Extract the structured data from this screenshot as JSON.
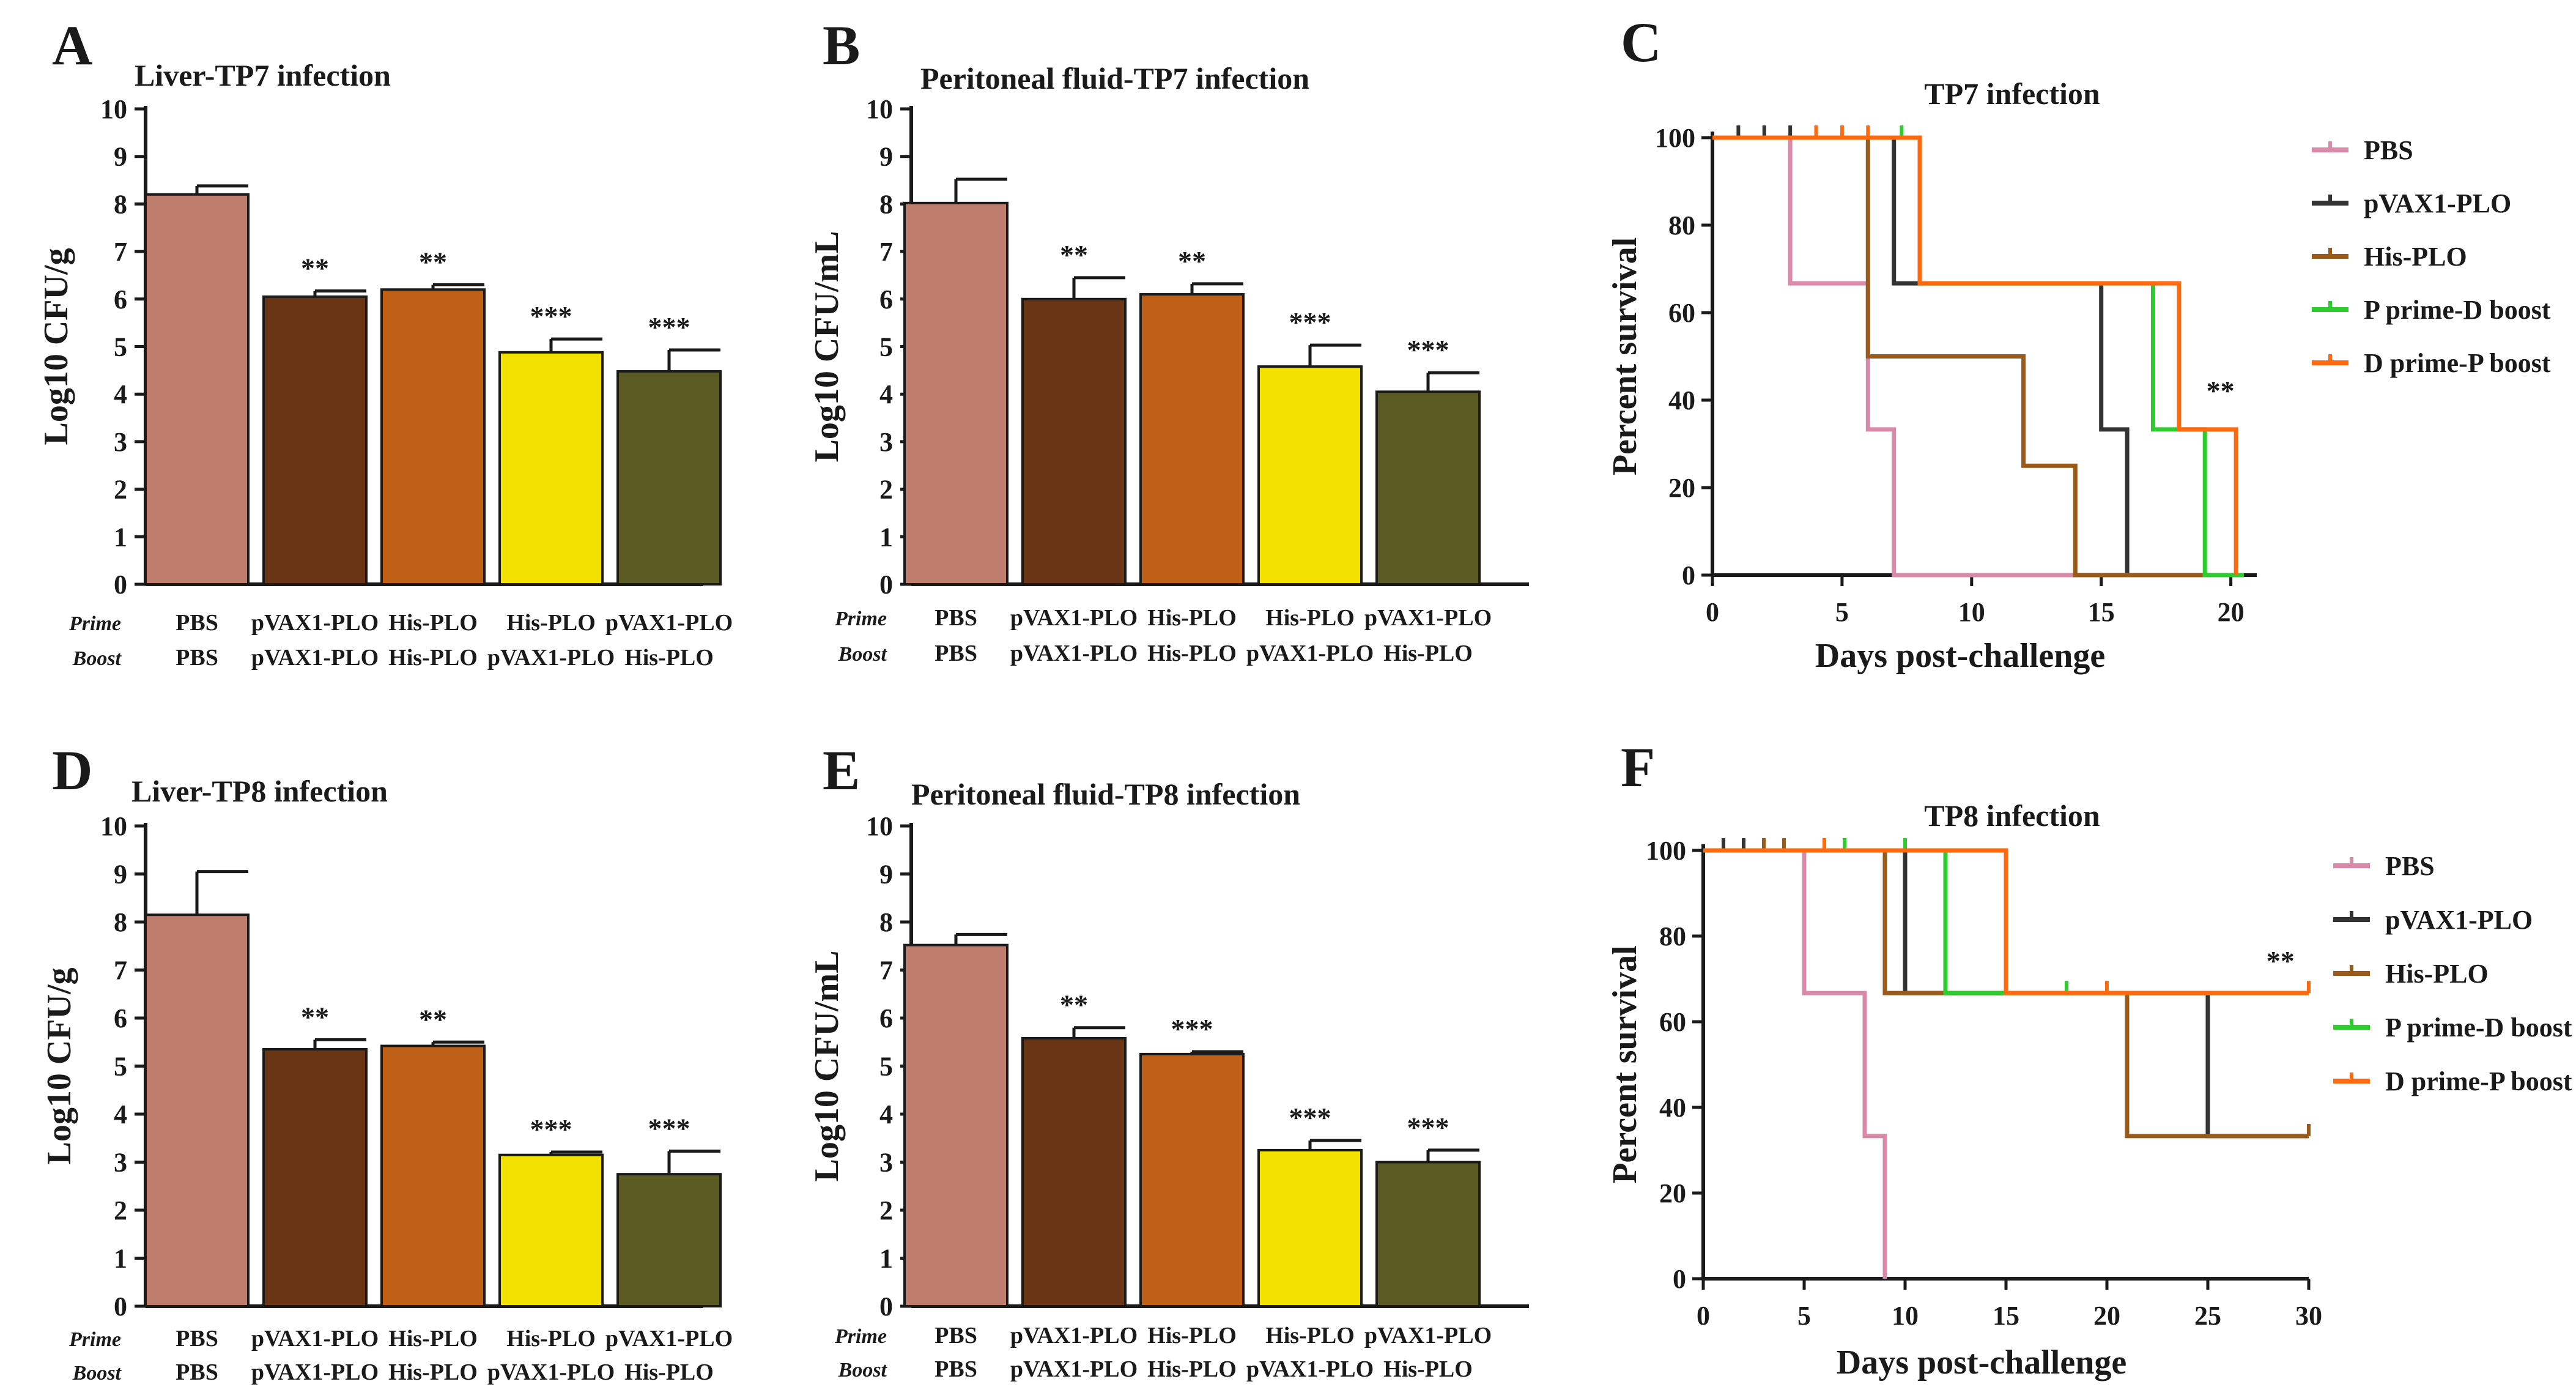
{
  "colors": {
    "PBS": "#bf7d6d",
    "pVAX1-PLO": "#6a3514",
    "His-PLO": "#bf6016",
    "His-PLO/pVAX1-PLO": "#f2e100",
    "pVAX1-PLO/His-PLO": "#5c5a23",
    "surv_PBS": "#d98aa8",
    "surv_pVAX1-PLO": "#333333",
    "surv_His-PLO": "#9a5a19",
    "surv_P prime-D boost": "#2ecc2e",
    "surv_D prime-P boost": "#ff6a10"
  },
  "row_labels": {
    "prime": "Prime",
    "boost": "Boost"
  },
  "chart_data": [
    {
      "id": "A",
      "panel": "A",
      "type": "bar",
      "title": "Liver-TP7 infection",
      "ylabel": "Log10 CFU/g",
      "ylim": [
        0,
        10
      ],
      "yticks": [
        "0",
        "1",
        "2",
        "3",
        "4",
        "5",
        "6",
        "7",
        "8",
        "9",
        "10"
      ],
      "categories": [
        {
          "prime": "PBS",
          "boost": "PBS"
        },
        {
          "prime": "pVAX1-PLO",
          "boost": "pVAX1-PLO"
        },
        {
          "prime": "His-PLO",
          "boost": "His-PLO"
        },
        {
          "prime": "His-PLO",
          "boost": "pVAX1-PLO"
        },
        {
          "prime": "pVAX1-PLO",
          "boost": "His-PLO"
        }
      ],
      "values": [
        8.2,
        6.05,
        6.2,
        4.88,
        4.48
      ],
      "errors": [
        0.18,
        0.12,
        0.1,
        0.28,
        0.45
      ],
      "significance": [
        "",
        "**",
        "**",
        "***",
        "***"
      ]
    },
    {
      "id": "B",
      "panel": "B",
      "type": "bar",
      "title": "Peritoneal fluid-TP7 infection",
      "ylabel": "Log10 CFU/mL",
      "ylim": [
        0,
        10
      ],
      "yticks": [
        "0",
        "1",
        "2",
        "3",
        "4",
        "5",
        "6",
        "7",
        "8",
        "9",
        "10"
      ],
      "categories": [
        {
          "prime": "PBS",
          "boost": "PBS"
        },
        {
          "prime": "pVAX1-PLO",
          "boost": "pVAX1-PLO"
        },
        {
          "prime": "His-PLO",
          "boost": "His-PLO"
        },
        {
          "prime": "His-PLO",
          "boost": "pVAX1-PLO"
        },
        {
          "prime": "pVAX1-PLO",
          "boost": "His-PLO"
        }
      ],
      "values": [
        8.02,
        6.0,
        6.1,
        4.58,
        4.05
      ],
      "errors": [
        0.5,
        0.45,
        0.22,
        0.45,
        0.4
      ],
      "significance": [
        "",
        "**",
        "**",
        "***",
        "***"
      ]
    },
    {
      "id": "C",
      "panel": "C",
      "type": "line",
      "title": "TP7 infection",
      "xlabel": "Days post-challenge",
      "ylabel": "Percent survival",
      "xlim": [
        0,
        21
      ],
      "ylim": [
        0,
        100
      ],
      "xticks": [
        0,
        5,
        10,
        15,
        20
      ],
      "yticks": [
        0,
        20,
        40,
        60,
        80,
        100
      ],
      "annotation": {
        "text": "**",
        "x": 19.6,
        "y": 40
      },
      "series": [
        {
          "name": "PBS",
          "color_key": "surv_PBS",
          "steps": [
            [
              0,
              100
            ],
            [
              3,
              100
            ],
            [
              3,
              66.7
            ],
            [
              6,
              66.7
            ],
            [
              6,
              33.3
            ],
            [
              7,
              33.3
            ],
            [
              7,
              0
            ],
            [
              20.5,
              0
            ]
          ],
          "censored": []
        },
        {
          "name": "pVAX1-PLO",
          "color_key": "surv_pVAX1-PLO",
          "steps": [
            [
              0,
              100
            ],
            [
              7,
              100
            ],
            [
              7,
              66.7
            ],
            [
              15,
              66.7
            ],
            [
              15,
              33.3
            ],
            [
              16,
              33.3
            ],
            [
              16,
              0
            ],
            [
              20.5,
              0
            ]
          ],
          "censored": [
            1,
            2,
            3
          ]
        },
        {
          "name": "His-PLO",
          "color_key": "surv_His-PLO",
          "steps": [
            [
              0,
              100
            ],
            [
              6,
              100
            ],
            [
              6,
              50
            ],
            [
              12,
              50
            ],
            [
              12,
              25
            ],
            [
              14,
              25
            ],
            [
              14,
              0
            ],
            [
              20.5,
              0
            ]
          ],
          "censored": []
        },
        {
          "name": "P prime-D boost",
          "color_key": "surv_P prime-D boost",
          "steps": [
            [
              0,
              100
            ],
            [
              8,
              100
            ],
            [
              8,
              66.7
            ],
            [
              17,
              66.7
            ],
            [
              17,
              33.3
            ],
            [
              19,
              33.3
            ],
            [
              19,
              0
            ],
            [
              20.5,
              0
            ]
          ],
          "censored": [
            7.3
          ]
        },
        {
          "name": "D prime-P boost",
          "color_key": "surv_D prime-P boost",
          "steps": [
            [
              0,
              100
            ],
            [
              8,
              100
            ],
            [
              8,
              66.7
            ],
            [
              18,
              66.7
            ],
            [
              18,
              33.3
            ],
            [
              20.2,
              33.3
            ],
            [
              20.2,
              0
            ]
          ],
          "censored": [
            4,
            5,
            6
          ]
        }
      ]
    },
    {
      "id": "D",
      "panel": "D",
      "type": "bar",
      "title": "Liver-TP8 infection",
      "ylabel": "Log10 CFU/g",
      "ylim": [
        0,
        10
      ],
      "yticks": [
        "0",
        "1",
        "2",
        "3",
        "4",
        "5",
        "6",
        "7",
        "8",
        "9",
        "10"
      ],
      "categories": [
        {
          "prime": "PBS",
          "boost": "PBS"
        },
        {
          "prime": "pVAX1-PLO",
          "boost": "pVAX1-PLO"
        },
        {
          "prime": "His-PLO",
          "boost": "His-PLO"
        },
        {
          "prime": "His-PLO",
          "boost": "pVAX1-PLO"
        },
        {
          "prime": "pVAX1-PLO",
          "boost": "His-PLO"
        }
      ],
      "values": [
        8.15,
        5.35,
        5.42,
        3.15,
        2.75
      ],
      "errors": [
        0.9,
        0.2,
        0.08,
        0.06,
        0.48
      ],
      "significance": [
        "",
        "**",
        "**",
        "***",
        "***"
      ]
    },
    {
      "id": "E",
      "panel": "E",
      "type": "bar",
      "title": "Peritoneal fluid-TP8 infection",
      "ylabel": "Log10 CFU/mL",
      "ylim": [
        0,
        10
      ],
      "yticks": [
        "0",
        "1",
        "2",
        "3",
        "4",
        "5",
        "6",
        "7",
        "8",
        "9",
        "10"
      ],
      "categories": [
        {
          "prime": "PBS",
          "boost": "PBS"
        },
        {
          "prime": "pVAX1-PLO",
          "boost": "pVAX1-PLO"
        },
        {
          "prime": "His-PLO",
          "boost": "His-PLO"
        },
        {
          "prime": "His-PLO",
          "boost": "pVAX1-PLO"
        },
        {
          "prime": "pVAX1-PLO",
          "boost": "His-PLO"
        }
      ],
      "values": [
        7.52,
        5.58,
        5.25,
        3.25,
        3.0
      ],
      "errors": [
        0.22,
        0.22,
        0.05,
        0.2,
        0.25
      ],
      "significance": [
        "",
        "**",
        "***",
        "***",
        "***"
      ]
    },
    {
      "id": "F",
      "panel": "F",
      "type": "line",
      "title": "TP8 infection",
      "xlabel": "Days post-challenge",
      "ylabel": "Percent survival",
      "xlim": [
        0,
        30
      ],
      "ylim": [
        0,
        100
      ],
      "xticks": [
        0,
        5,
        10,
        15,
        20,
        25,
        30
      ],
      "yticks": [
        0,
        20,
        40,
        60,
        80,
        100
      ],
      "annotation": {
        "text": "**",
        "x": 28.6,
        "y": 72
      },
      "series": [
        {
          "name": "PBS",
          "color_key": "surv_PBS",
          "steps": [
            [
              0,
              100
            ],
            [
              5,
              100
            ],
            [
              5,
              66.7
            ],
            [
              8,
              66.7
            ],
            [
              8,
              33.3
            ],
            [
              9,
              33.3
            ],
            [
              9,
              0
            ]
          ],
          "censored": []
        },
        {
          "name": "pVAX1-PLO",
          "color_key": "surv_pVAX1-PLO",
          "steps": [
            [
              0,
              100
            ],
            [
              10,
              100
            ],
            [
              10,
              66.7
            ],
            [
              25,
              66.7
            ],
            [
              25,
              33.3
            ],
            [
              30,
              33.3
            ]
          ],
          "censored": [
            1,
            2
          ]
        },
        {
          "name": "His-PLO",
          "color_key": "surv_His-PLO",
          "steps": [
            [
              0,
              100
            ],
            [
              9,
              100
            ],
            [
              9,
              66.7
            ],
            [
              21,
              66.7
            ],
            [
              21,
              33.3
            ],
            [
              30,
              33.3
            ]
          ],
          "censored": [
            3,
            4,
            30
          ]
        },
        {
          "name": "P prime-D boost",
          "color_key": "surv_P prime-D boost",
          "steps": [
            [
              0,
              100
            ],
            [
              12,
              100
            ],
            [
              12,
              66.7
            ],
            [
              30,
              66.7
            ]
          ],
          "censored": [
            7,
            10,
            18
          ]
        },
        {
          "name": "D prime-P boost",
          "color_key": "surv_D prime-P boost",
          "steps": [
            [
              0,
              100
            ],
            [
              15,
              100
            ],
            [
              15,
              66.7
            ],
            [
              30,
              66.7
            ]
          ],
          "censored": [
            6,
            20,
            30
          ]
        }
      ]
    }
  ]
}
